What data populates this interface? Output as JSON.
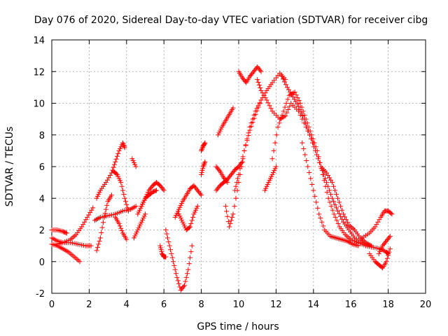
{
  "chart_data": {
    "type": "scatter",
    "title": "Day 076 of 2020, Sidereal Day-to-day VTEC variation (SDTVAR) for receiver cibg",
    "xlabel": "GPS time / hours",
    "ylabel": "SDTVAR / TECUs",
    "xlim": [
      0,
      20
    ],
    "ylim": [
      -2,
      14
    ],
    "xticks": [
      0,
      2,
      4,
      6,
      8,
      10,
      12,
      14,
      16,
      18,
      20
    ],
    "yticks": [
      -2,
      0,
      2,
      4,
      6,
      8,
      10,
      12,
      14
    ],
    "grid": true,
    "marker": "+",
    "color": "#ff0000",
    "series": [
      {
        "name": "s1",
        "x": [
          0,
          0.3,
          0.6,
          0.9,
          1.2,
          1.5
        ],
        "y": [
          1.1,
          1.0,
          0.8,
          0.6,
          0.3,
          0.0
        ]
      },
      {
        "name": "s2",
        "x": [
          0,
          0.3,
          0.6,
          0.8
        ],
        "y": [
          2.0,
          2.0,
          1.9,
          1.8
        ]
      },
      {
        "name": "s3",
        "x": [
          0,
          0.3,
          0.6,
          1.0,
          1.4,
          1.8,
          2.1
        ],
        "y": [
          1.5,
          1.3,
          1.2,
          1.2,
          1.1,
          1.0,
          1.0
        ]
      },
      {
        "name": "s4",
        "x": [
          0.3,
          0.6,
          1.0,
          1.3,
          1.6,
          1.9,
          2.2
        ],
        "y": [
          1.1,
          1.2,
          1.4,
          1.7,
          2.2,
          2.8,
          3.4
        ]
      },
      {
        "name": "s5",
        "x": [
          2.4,
          2.6,
          2.8,
          3.0,
          3.2
        ],
        "y": [
          0.7,
          1.5,
          2.8,
          3.8,
          4.2
        ]
      },
      {
        "name": "s6",
        "x": [
          2.3,
          2.6,
          3.0,
          3.4,
          3.8,
          4.2,
          4.5
        ],
        "y": [
          2.6,
          2.8,
          2.9,
          3.0,
          3.2,
          3.3,
          3.5
        ]
      },
      {
        "name": "s7",
        "x": [
          2.4,
          2.6,
          2.9,
          3.2,
          3.4,
          3.6,
          3.8,
          3.9
        ],
        "y": [
          4.0,
          4.5,
          5.0,
          5.6,
          6.3,
          7.0,
          7.5,
          7.2
        ]
      },
      {
        "name": "s8",
        "x": [
          3.3,
          3.5,
          3.7,
          3.9,
          4.1
        ],
        "y": [
          5.7,
          5.5,
          5.0,
          4.0,
          3.2
        ]
      },
      {
        "name": "s9",
        "x": [
          3.4,
          3.6,
          3.8,
          4.0
        ],
        "y": [
          2.8,
          2.4,
          1.8,
          1.4
        ]
      },
      {
        "name": "s10",
        "x": [
          4.3,
          4.5
        ],
        "y": [
          6.5,
          6.0
        ]
      },
      {
        "name": "s11",
        "x": [
          4.6,
          4.8,
          5.0,
          5.2,
          5.4,
          5.6
        ],
        "y": [
          3.0,
          3.5,
          4.0,
          4.2,
          4.4,
          4.5
        ]
      },
      {
        "name": "s12",
        "x": [
          4.8,
          5.0,
          5.2,
          5.4,
          5.6,
          5.8,
          6.0
        ],
        "y": [
          3.5,
          4.0,
          4.5,
          4.8,
          5.0,
          4.8,
          4.5
        ]
      },
      {
        "name": "s13",
        "x": [
          5.0,
          4.8,
          4.6,
          4.4
        ],
        "y": [
          3.0,
          2.5,
          2.0,
          1.5
        ]
      },
      {
        "name": "s14",
        "x": [
          5.8,
          5.9,
          6.0,
          6.1
        ],
        "y": [
          1.0,
          0.5,
          0.3,
          0.3
        ]
      },
      {
        "name": "s15",
        "x": [
          6.1,
          6.3,
          6.5,
          6.7,
          6.9,
          7.1,
          7.3,
          7.5
        ],
        "y": [
          2.0,
          1.0,
          0.0,
          -1.0,
          -1.8,
          -1.5,
          -0.5,
          1.0
        ]
      },
      {
        "name": "s16",
        "x": [
          6.8,
          7.0,
          7.2,
          7.4,
          7.6,
          7.8
        ],
        "y": [
          3.0,
          2.5,
          2.0,
          2.2,
          3.0,
          3.5
        ]
      },
      {
        "name": "s17",
        "x": [
          6.6,
          6.8,
          7.0,
          7.2,
          7.4,
          7.6,
          7.8,
          8.0
        ],
        "y": [
          2.8,
          3.3,
          3.8,
          4.2,
          4.6,
          4.8,
          4.5,
          4.2
        ]
      },
      {
        "name": "s18",
        "x": [
          8.0,
          8.1,
          8.2
        ],
        "y": [
          5.5,
          6.0,
          6.3
        ]
      },
      {
        "name": "s19",
        "x": [
          8.0,
          8.1,
          8.2
        ],
        "y": [
          7.0,
          7.3,
          7.5
        ]
      },
      {
        "name": "s20",
        "x": [
          8.8,
          9.0,
          9.2,
          9.4,
          9.6,
          9.8,
          10.0,
          10.2
        ],
        "y": [
          4.5,
          4.8,
          5.0,
          5.2,
          5.5,
          5.8,
          6.0,
          6.3
        ]
      },
      {
        "name": "s21",
        "x": [
          8.8,
          9.0,
          9.2,
          9.4
        ],
        "y": [
          6.0,
          5.7,
          5.3,
          5.0
        ]
      },
      {
        "name": "s22",
        "x": [
          8.9,
          9.1,
          9.3,
          9.5,
          9.7
        ],
        "y": [
          8.0,
          8.5,
          8.9,
          9.3,
          9.7
        ]
      },
      {
        "name": "s23",
        "x": [
          9.3,
          9.5,
          9.7,
          10.0,
          10.3,
          10.6,
          10.9,
          11.2
        ],
        "y": [
          3.5,
          2.2,
          3.0,
          5.0,
          7.0,
          8.5,
          9.5,
          10.2
        ]
      },
      {
        "name": "s24",
        "x": [
          9.8,
          10.0,
          10.3,
          10.6,
          10.9,
          11.2,
          11.5,
          11.8,
          12.2,
          12.5
        ],
        "y": [
          4.5,
          5.5,
          7.0,
          8.3,
          9.3,
          10.2,
          10.8,
          11.3,
          11.9,
          11.5
        ]
      },
      {
        "name": "s25",
        "x": [
          10.0,
          10.2,
          10.4,
          10.6,
          10.8,
          11.0,
          11.2
        ],
        "y": [
          12.0,
          11.6,
          11.3,
          11.7,
          12.0,
          12.3,
          12.0
        ]
      },
      {
        "name": "s26",
        "x": [
          11.0,
          11.2,
          11.5,
          11.8,
          12.2,
          12.5,
          12.8,
          13.2,
          13.6,
          14.0
        ],
        "y": [
          11.5,
          10.8,
          10.2,
          9.5,
          9.0,
          9.2,
          10.0,
          9.5,
          8.5,
          7.5
        ]
      },
      {
        "name": "s27",
        "x": [
          11.4,
          11.6,
          11.8,
          12.0
        ],
        "y": [
          4.5,
          5.0,
          5.5,
          6.0
        ]
      },
      {
        "name": "s28",
        "x": [
          11.8,
          12.1,
          12.4,
          12.7,
          13.0,
          13.3,
          13.6,
          13.9,
          14.2,
          14.5,
          14.8,
          15.1,
          15.4,
          15.7,
          16.0,
          16.4
        ],
        "y": [
          6.5,
          8.5,
          9.5,
          10.5,
          10.7,
          10.0,
          9.0,
          8.0,
          7.0,
          5.5,
          4.0,
          3.0,
          2.2,
          1.7,
          1.4,
          1.2
        ]
      },
      {
        "name": "s29",
        "x": [
          12.3,
          12.6,
          12.9,
          13.2,
          13.5,
          13.8,
          14.1,
          14.4,
          14.7,
          15.0,
          15.3,
          15.6,
          15.9,
          16.2,
          16.6,
          17.0
        ],
        "y": [
          11.7,
          11.0,
          10.4,
          9.8,
          9.0,
          8.0,
          7.0,
          6.0,
          5.0,
          4.0,
          3.2,
          2.5,
          2.0,
          1.5,
          1.2,
          1.0
        ]
      },
      {
        "name": "s30",
        "x": [
          13.4,
          13.7,
          14.0,
          14.3,
          14.6,
          14.9,
          15.2,
          15.5,
          15.8,
          16.1,
          16.4
        ],
        "y": [
          7.5,
          6.0,
          4.5,
          3.0,
          2.0,
          1.6,
          1.5,
          1.4,
          1.3,
          1.1,
          1.0
        ]
      },
      {
        "name": "s31",
        "x": [
          14.4,
          14.7,
          15.0,
          15.3,
          15.6,
          15.9,
          16.2,
          16.5,
          16.8,
          17.1
        ],
        "y": [
          6.0,
          5.6,
          5.0,
          4.0,
          3.0,
          2.3,
          2.0,
          1.5,
          1.2,
          1.0
        ]
      },
      {
        "name": "s32",
        "x": [
          16.4,
          16.8,
          17.2,
          17.6,
          17.9,
          18.0
        ],
        "y": [
          1.2,
          1.0,
          0.9,
          0.8,
          0.6,
          0.5
        ]
      },
      {
        "name": "s33",
        "x": [
          16.6,
          17.0,
          17.3,
          17.6,
          17.8,
          18.0,
          18.2
        ],
        "y": [
          1.5,
          1.8,
          2.2,
          2.8,
          3.2,
          3.2,
          3.0
        ]
      },
      {
        "name": "s34",
        "x": [
          17.0,
          17.3,
          17.5,
          17.7,
          17.9,
          18.1
        ],
        "y": [
          0.5,
          0.0,
          -0.2,
          -0.4,
          0.0,
          0.8
        ]
      },
      {
        "name": "s35",
        "x": [
          17.5,
          17.7,
          17.9,
          18.1
        ],
        "y": [
          0.5,
          1.0,
          1.3,
          1.6
        ]
      }
    ]
  }
}
